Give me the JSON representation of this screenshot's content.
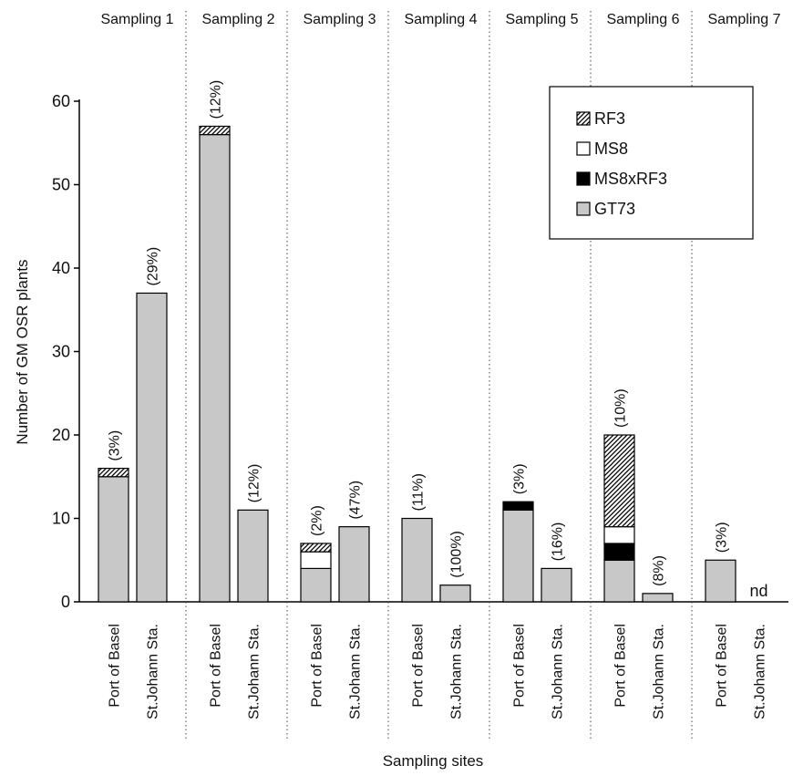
{
  "chart_data": {
    "type": "bar",
    "stacked": true,
    "ylabel": "Number of GM OSR plants",
    "xlabel": "Sampling sites",
    "ylim": [
      0,
      60
    ],
    "yticks": [
      0,
      10,
      20,
      30,
      40,
      50,
      60
    ],
    "legend_position": "top-right",
    "legend_order": [
      "RF3",
      "MS8",
      "MS8xRF3",
      "GT73"
    ],
    "series": [
      {
        "name": "GT73",
        "fill": "#c8c8c8"
      },
      {
        "name": "MS8xRF3",
        "fill": "#000000"
      },
      {
        "name": "MS8",
        "fill": "#ffffff"
      },
      {
        "name": "RF3",
        "fill": "hatch"
      }
    ],
    "groups": [
      {
        "label": "Sampling 1",
        "bars": [
          {
            "site": "Port of Basel",
            "label": "(3%)",
            "values": {
              "GT73": 15,
              "MS8xRF3": 0,
              "MS8": 0,
              "RF3": 1
            }
          },
          {
            "site": "St.Johann Sta.",
            "label": "(29%)",
            "values": {
              "GT73": 37,
              "MS8xRF3": 0,
              "MS8": 0,
              "RF3": 0
            }
          }
        ]
      },
      {
        "label": "Sampling 2",
        "bars": [
          {
            "site": "Port of Basel",
            "label": "(12%)",
            "values": {
              "GT73": 56,
              "MS8xRF3": 0,
              "MS8": 0,
              "RF3": 1
            }
          },
          {
            "site": "St.Johann Sta.",
            "label": "(12%)",
            "values": {
              "GT73": 11,
              "MS8xRF3": 0,
              "MS8": 0,
              "RF3": 0
            }
          }
        ]
      },
      {
        "label": "Sampling 3",
        "bars": [
          {
            "site": "Port of Basel",
            "label": "(2%)",
            "values": {
              "GT73": 4,
              "MS8xRF3": 0,
              "MS8": 2,
              "RF3": 1
            }
          },
          {
            "site": "St.Johann Sta.",
            "label": "(47%)",
            "values": {
              "GT73": 9,
              "MS8xRF3": 0,
              "MS8": 0,
              "RF3": 0
            }
          }
        ]
      },
      {
        "label": "Sampling 4",
        "bars": [
          {
            "site": "Port of Basel",
            "label": "(11%)",
            "values": {
              "GT73": 10,
              "MS8xRF3": 0,
              "MS8": 0,
              "RF3": 0
            }
          },
          {
            "site": "St.Johann Sta.",
            "label": "(100%)",
            "values": {
              "GT73": 2,
              "MS8xRF3": 0,
              "MS8": 0,
              "RF3": 0
            }
          }
        ]
      },
      {
        "label": "Sampling 5",
        "bars": [
          {
            "site": "Port of Basel",
            "label": "(3%)",
            "values": {
              "GT73": 11,
              "MS8xRF3": 1,
              "MS8": 0,
              "RF3": 0
            }
          },
          {
            "site": "St.Johann Sta.",
            "label": "(16%)",
            "values": {
              "GT73": 4,
              "MS8xRF3": 0,
              "MS8": 0,
              "RF3": 0
            }
          }
        ]
      },
      {
        "label": "Sampling 6",
        "bars": [
          {
            "site": "Port of Basel",
            "label": "(10%)",
            "values": {
              "GT73": 5,
              "MS8xRF3": 2,
              "MS8": 2,
              "RF3": 11
            }
          },
          {
            "site": "St.Johann Sta.",
            "label": "(8%)",
            "values": {
              "GT73": 1,
              "MS8xRF3": 0,
              "MS8": 0,
              "RF3": 0
            }
          }
        ]
      },
      {
        "label": "Sampling 7",
        "bars": [
          {
            "site": "Port of Basel",
            "label": "(3%)",
            "values": {
              "GT73": 5,
              "MS8xRF3": 0,
              "MS8": 0,
              "RF3": 0
            }
          },
          {
            "site": "St.Johann Sta.",
            "label": "nd",
            "values": {
              "GT73": 0,
              "MS8xRF3": 0,
              "MS8": 0,
              "RF3": 0
            }
          }
        ]
      }
    ]
  }
}
